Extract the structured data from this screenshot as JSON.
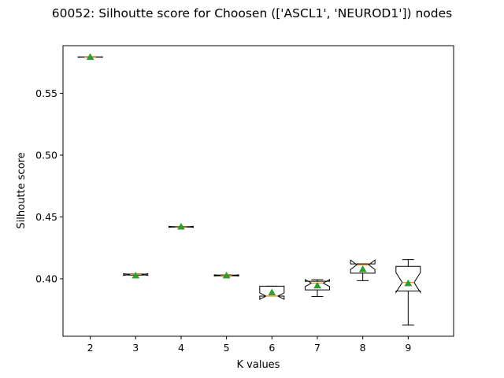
{
  "chart_data": {
    "type": "boxplot",
    "title": "60052: Silhoutte score for Choosen (['ASCL1', 'NEUROD1']) nodes",
    "xlabel": "K values",
    "ylabel": "Silhoutte score",
    "ylim": [
      0.3535,
      0.5885
    ],
    "yticks": [
      0.4,
      0.45,
      0.5,
      0.55
    ],
    "ytick_labels": [
      "0.40",
      "0.45",
      "0.50",
      "0.55"
    ],
    "categories": [
      "2",
      "3",
      "4",
      "5",
      "6",
      "7",
      "8",
      "9"
    ],
    "notched": true,
    "show_means": true,
    "grid": false,
    "colors": {
      "box": "#000000",
      "median": "#ff7f0e",
      "mean": "#2ca02c"
    },
    "boxes": [
      {
        "k": "2",
        "whislo": 0.5792,
        "q1": 0.5792,
        "med": 0.5793,
        "q3": 0.5794,
        "whishi": 0.5794,
        "notch_lo": 0.5791,
        "notch_hi": 0.5795,
        "mean": 0.5793
      },
      {
        "k": "3",
        "whislo": 0.403,
        "q1": 0.403,
        "med": 0.4035,
        "q3": 0.4038,
        "whishi": 0.4038,
        "notch_lo": 0.4027,
        "notch_hi": 0.4041,
        "mean": 0.4026
      },
      {
        "k": "4",
        "whislo": 0.4418,
        "q1": 0.4418,
        "med": 0.442,
        "q3": 0.4422,
        "whishi": 0.4422,
        "notch_lo": 0.4416,
        "notch_hi": 0.4424,
        "mean": 0.4421
      },
      {
        "k": "5",
        "whislo": 0.4024,
        "q1": 0.4024,
        "med": 0.4027,
        "q3": 0.403,
        "whishi": 0.403,
        "notch_lo": 0.4022,
        "notch_hi": 0.4032,
        "mean": 0.4026
      },
      {
        "k": "6",
        "whislo": 0.386,
        "q1": 0.386,
        "med": 0.386,
        "q3": 0.394,
        "whishi": 0.394,
        "notch_lo": 0.3834,
        "notch_hi": 0.3886,
        "mean": 0.3889
      },
      {
        "k": "7",
        "whislo": 0.3857,
        "q1": 0.391,
        "med": 0.3965,
        "q3": 0.398,
        "whishi": 0.3992,
        "notch_lo": 0.3937,
        "notch_hi": 0.3993,
        "mean": 0.3945
      },
      {
        "k": "8",
        "whislo": 0.3985,
        "q1": 0.4045,
        "med": 0.4113,
        "q3": 0.412,
        "whishi": 0.412,
        "notch_lo": 0.4075,
        "notch_hi": 0.4151,
        "mean": 0.4077
      },
      {
        "k": "9",
        "whislo": 0.3625,
        "q1": 0.39,
        "med": 0.397,
        "q3": 0.41,
        "whishi": 0.4155,
        "notch_lo": 0.389,
        "notch_hi": 0.405,
        "mean": 0.3963
      }
    ]
  }
}
